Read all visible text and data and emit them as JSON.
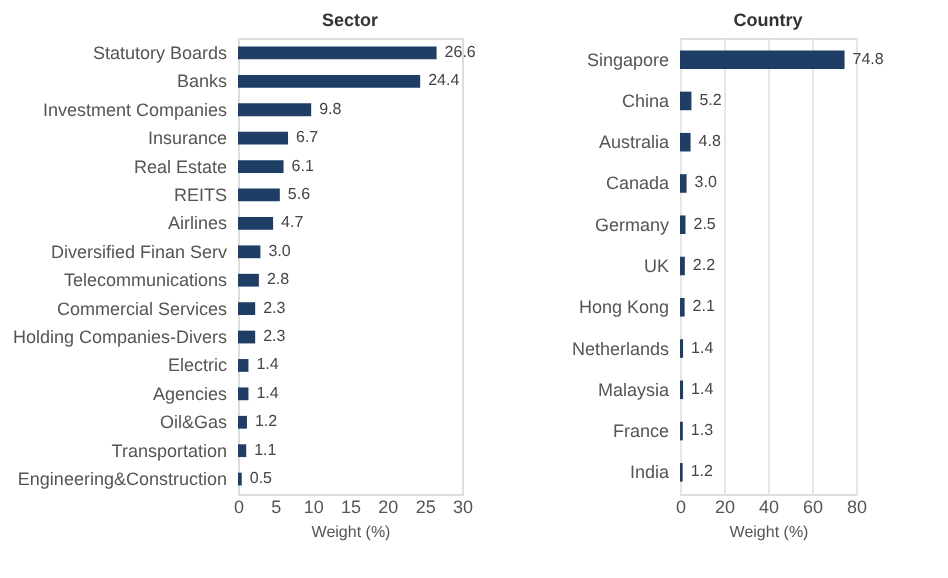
{
  "chart_data": [
    {
      "type": "bar",
      "orientation": "horizontal",
      "title": "Sector",
      "xlabel": "Weight (%)",
      "categories": [
        "Statutory Boards",
        "Banks",
        "Investment Companies",
        "Insurance",
        "Real Estate",
        "REITS",
        "Airlines",
        "Diversified Finan Serv",
        "Telecommunications",
        "Commercial Services",
        "Holding Companies-Divers",
        "Electric",
        "Agencies",
        "Oil&Gas",
        "Transportation",
        "Engineering&Construction"
      ],
      "values": [
        26.6,
        24.4,
        9.8,
        6.7,
        6.1,
        5.6,
        4.7,
        3.0,
        2.8,
        2.3,
        2.3,
        1.4,
        1.4,
        1.2,
        1.1,
        0.5
      ],
      "color": "#1f3e66",
      "xlim": [
        0,
        30
      ],
      "xticks": [
        0,
        5,
        10,
        15,
        20,
        25,
        30
      ],
      "value_labels": [
        "26.6",
        "24.4",
        "9.8",
        "6.7",
        "6.1",
        "5.6",
        "4.7",
        "3.0",
        "2.8",
        "2.3",
        "2.3",
        "1.4",
        "1.4",
        "1.2",
        "1.1",
        "0.5"
      ],
      "grid": false
    },
    {
      "type": "bar",
      "orientation": "horizontal",
      "title": "Country",
      "xlabel": "Weight (%)",
      "categories": [
        "Singapore",
        "China",
        "Australia",
        "Canada",
        "Germany",
        "UK",
        "Hong Kong",
        "Netherlands",
        "Malaysia",
        "France",
        "India"
      ],
      "values": [
        74.8,
        5.2,
        4.8,
        3.0,
        2.5,
        2.2,
        2.1,
        1.4,
        1.4,
        1.3,
        1.2
      ],
      "color": "#1f3e66",
      "xlim": [
        0,
        80
      ],
      "xticks": [
        0,
        20,
        40,
        60,
        80
      ],
      "value_labels": [
        "74.8",
        "5.2",
        "4.8",
        "3.0",
        "2.5",
        "2.2",
        "2.1",
        "1.4",
        "1.4",
        "1.3",
        "1.2"
      ],
      "grid": "x"
    }
  ]
}
